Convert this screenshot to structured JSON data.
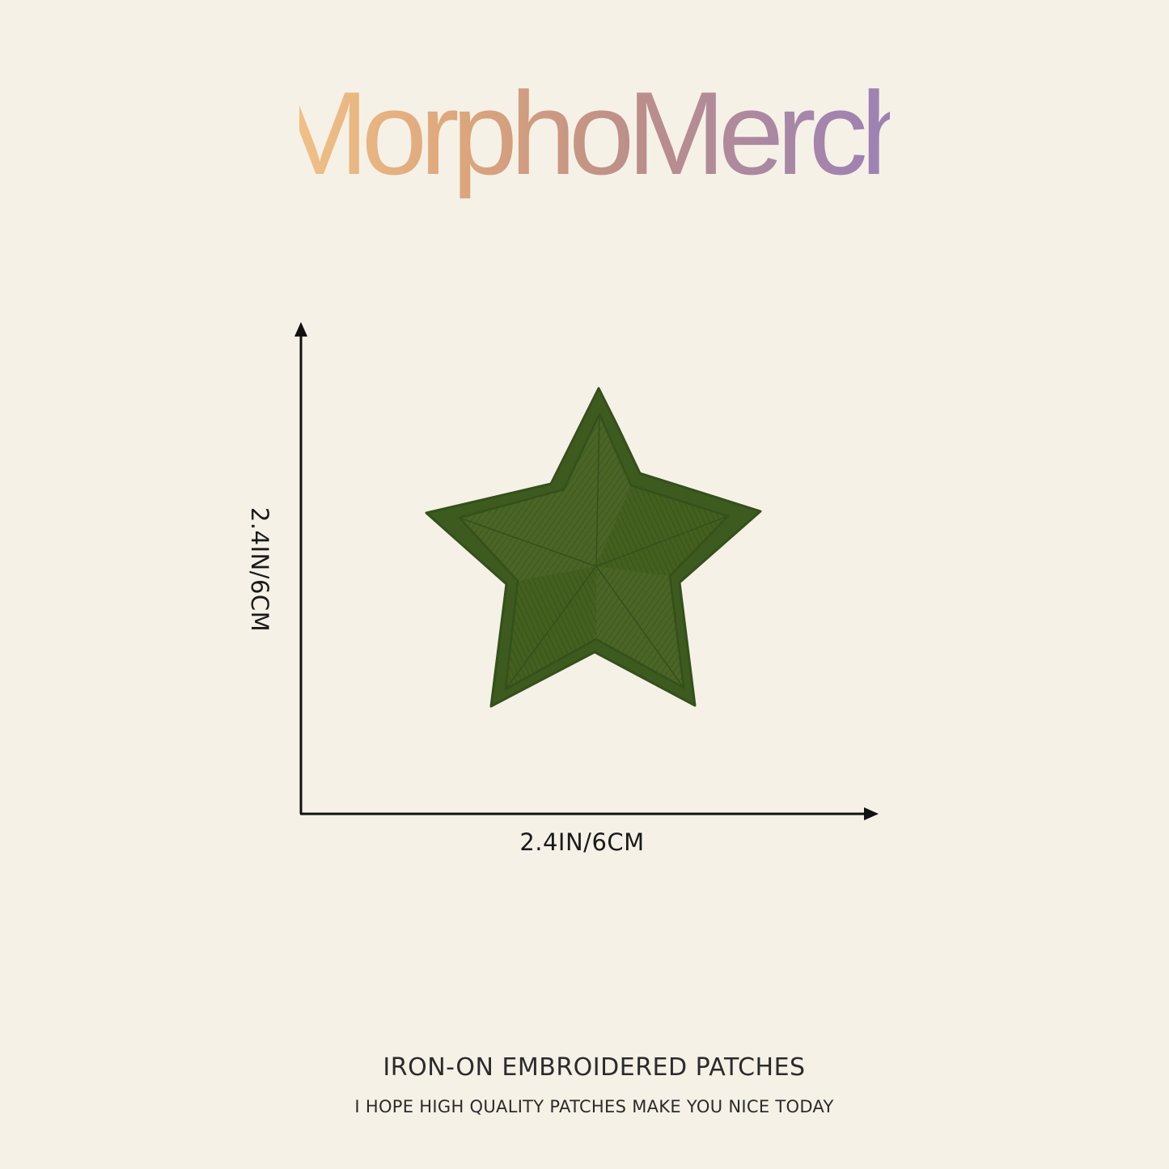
{
  "brand": {
    "name": "MorphoMerch",
    "gradient": [
      "#f3c589",
      "#d9a27a",
      "#b98d8a",
      "#a987a8",
      "#9a7fb8"
    ]
  },
  "product": {
    "image": "green-star-patch-icon",
    "color": "#4a6526",
    "color_light": "#5a7a30",
    "color_dark": "#3a5220"
  },
  "dimensions": {
    "width_label": "2.4IN/6CM",
    "height_label": "2.4IN/6CM"
  },
  "footer": {
    "title": "IRON-ON EMBROIDERED PATCHES",
    "subtitle": "I HOPE HIGH QUALITY PATCHES MAKE YOU NICE TODAY"
  }
}
